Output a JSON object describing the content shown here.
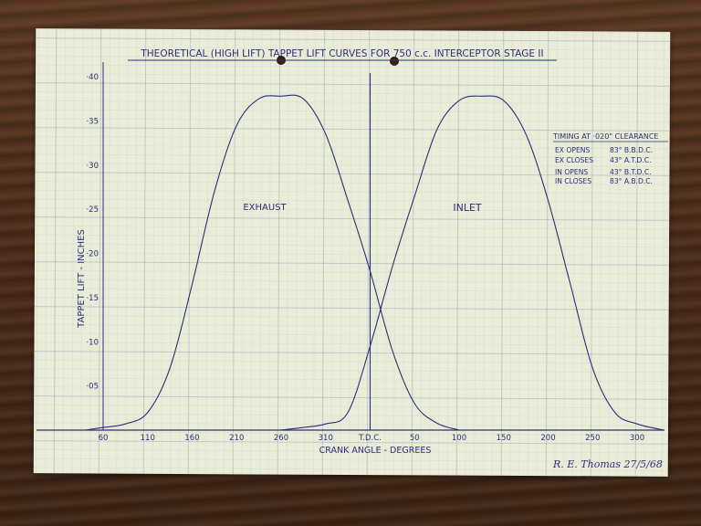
{
  "chart_data": {
    "type": "line",
    "title": "THEORETICAL (HIGH LIFT) TAPPET LIFT CURVES FOR 750 c.c. INTERCEPTOR STAGE II",
    "xlabel": "CRANK ANGLE - DEGREES",
    "ylabel": "TAPPET LIFT - INCHES",
    "x_tick_labels": [
      "60",
      "110",
      "160",
      "210",
      "260",
      "310",
      "T.D.C.",
      "50",
      "100",
      "150",
      "200",
      "250",
      "300"
    ],
    "y_tick_labels": [
      "·05",
      "·10",
      "·15",
      "·20",
      "·25",
      "·30",
      "·35",
      "·40"
    ],
    "ylim": [
      0,
      0.4
    ],
    "xlim": [
      0,
      12.6
    ],
    "grid": true,
    "tdc_index": 6,
    "series": [
      {
        "name": "EXHAUST",
        "x": [
          -0.4,
          0.0,
          0.5,
          1.0,
          1.5,
          2.0,
          2.5,
          3.0,
          3.5,
          4.0,
          4.5,
          5.0,
          5.5,
          6.0,
          6.5,
          7.0,
          7.5,
          8.0
        ],
        "values": [
          0.0,
          0.003,
          0.007,
          0.02,
          0.07,
          0.165,
          0.27,
          0.345,
          0.375,
          0.378,
          0.375,
          0.335,
          0.26,
          0.18,
          0.09,
          0.03,
          0.008,
          0.0
        ]
      },
      {
        "name": "INLET",
        "x": [
          4.0,
          4.5,
          5.0,
          5.5,
          6.0,
          6.5,
          7.0,
          7.5,
          8.0,
          8.5,
          9.0,
          9.5,
          10.0,
          10.5,
          11.0,
          11.5,
          12.0,
          12.6
        ],
        "values": [
          0.0,
          0.003,
          0.007,
          0.02,
          0.095,
          0.185,
          0.265,
          0.34,
          0.373,
          0.378,
          0.373,
          0.335,
          0.26,
          0.165,
          0.07,
          0.02,
          0.007,
          0.0
        ]
      }
    ],
    "annotations": {
      "exhaust_label": "EXHAUST",
      "inlet_label": "INLET",
      "timing_title": "TIMING AT ·020\" CLEARANCE",
      "timing_rows": [
        {
          "event": "EX OPENS",
          "value": "83° B.B.D.C."
        },
        {
          "event": "EX CLOSES",
          "value": "43° A.T.D.C."
        },
        {
          "event": "IN OPENS",
          "value": "43° B.T.D.C."
        },
        {
          "event": "IN CLOSES",
          "value": "83° A.B.D.C."
        }
      ],
      "signature": "R. E. Thomas 27/5/68"
    },
    "ink_color": "#2c2f7a"
  }
}
